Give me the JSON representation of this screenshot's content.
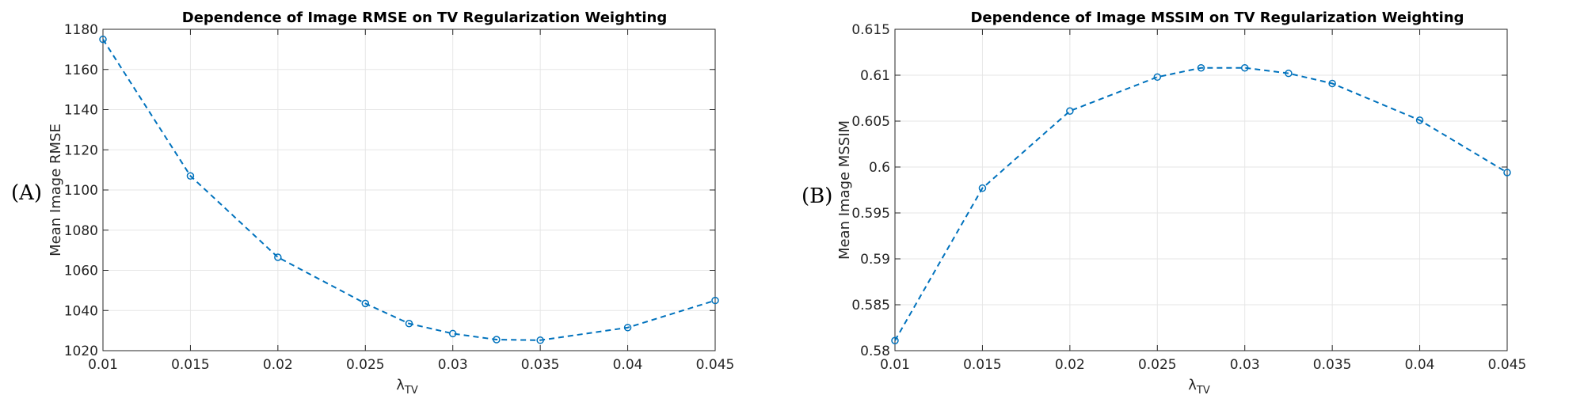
{
  "chart_data": [
    {
      "type": "line",
      "panel_label": "(A)",
      "title": "Dependence of Image RMSE on TV Regularization Weighting",
      "xlabel_main": "λ",
      "xlabel_sub": "TV",
      "ylabel": "Mean Image RMSE",
      "xlim": [
        0.01,
        0.045
      ],
      "ylim": [
        1020,
        1180
      ],
      "xticks": [
        0.01,
        0.015,
        0.02,
        0.025,
        0.03,
        0.035,
        0.04,
        0.045
      ],
      "xtick_labels": [
        "0.01",
        "0.015",
        "0.02",
        "0.025",
        "0.03",
        "0.035",
        "0.04",
        "0.045"
      ],
      "yticks": [
        1020,
        1040,
        1060,
        1080,
        1100,
        1120,
        1140,
        1160,
        1180
      ],
      "ytick_labels": [
        "1020",
        "1040",
        "1060",
        "1080",
        "1100",
        "1120",
        "1140",
        "1160",
        "1180"
      ],
      "grid": true,
      "color": "#0072BD",
      "series": [
        {
          "name": "RMSE",
          "x": [
            0.01,
            0.015,
            0.02,
            0.025,
            0.0275,
            0.03,
            0.0325,
            0.035,
            0.04,
            0.045
          ],
          "y": [
            1175,
            1107,
            1066.5,
            1043.5,
            1033.5,
            1028.5,
            1025.5,
            1025.2,
            1031.5,
            1045
          ]
        }
      ]
    },
    {
      "type": "line",
      "panel_label": "(B)",
      "title": "Dependence of Image MSSIM on TV Regularization Weighting",
      "xlabel_main": "λ",
      "xlabel_sub": "TV",
      "ylabel": "Mean Image MSSIM",
      "xlim": [
        0.01,
        0.045
      ],
      "ylim": [
        0.58,
        0.615
      ],
      "xticks": [
        0.01,
        0.015,
        0.02,
        0.025,
        0.03,
        0.035,
        0.04,
        0.045
      ],
      "xtick_labels": [
        "0.01",
        "0.015",
        "0.02",
        "0.025",
        "0.03",
        "0.035",
        "0.04",
        "0.045"
      ],
      "yticks": [
        0.58,
        0.585,
        0.59,
        0.595,
        0.6,
        0.605,
        0.61,
        0.615
      ],
      "ytick_labels": [
        "0.58",
        "0.585",
        "0.59",
        "0.595",
        "0.6",
        "0.605",
        "0.61",
        "0.615"
      ],
      "grid": true,
      "color": "#0072BD",
      "series": [
        {
          "name": "MSSIM",
          "x": [
            0.01,
            0.015,
            0.02,
            0.025,
            0.0275,
            0.03,
            0.0325,
            0.035,
            0.04,
            0.045
          ],
          "y": [
            0.5811,
            0.5977,
            0.6061,
            0.6098,
            0.6108,
            0.6108,
            0.6102,
            0.6091,
            0.6051,
            0.5994
          ]
        }
      ]
    }
  ]
}
